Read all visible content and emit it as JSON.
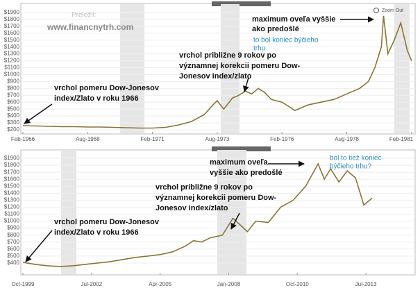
{
  "header": {
    "translator_label": "Preložil:",
    "website": "www.financnytrh.com",
    "zoom_label": "Zoom Out"
  },
  "chart_data": [
    {
      "type": "line",
      "color": "#8a7533",
      "grid": true,
      "xlim": [
        "1966-02",
        "1981-03"
      ],
      "ylim": [
        170,
        1980
      ],
      "xticks": [
        {
          "value": "1966-02",
          "label": "Feb-1966"
        },
        {
          "value": "1968-08",
          "label": "Aug-1968"
        },
        {
          "value": "1971-02",
          "label": "Feb-1971"
        },
        {
          "value": "1973-08",
          "label": "Aug-1973"
        },
        {
          "value": "1976-02",
          "label": "Feb-1976"
        },
        {
          "value": "1978-08",
          "label": "Aug-1978"
        },
        {
          "value": "1981-02",
          "label": "Feb-1981"
        }
      ],
      "yticks": [
        {
          "value": 200,
          "label": "$200"
        },
        {
          "value": 300,
          "label": "$300"
        },
        {
          "value": 400,
          "label": "$400"
        },
        {
          "value": 500,
          "label": "$500"
        },
        {
          "value": 600,
          "label": "$600"
        },
        {
          "value": 700,
          "label": "$700"
        },
        {
          "value": 800,
          "label": "$800"
        },
        {
          "value": 900,
          "label": "$900"
        },
        {
          "value": 1000,
          "label": "$1000"
        },
        {
          "value": 1100,
          "label": "$1100"
        },
        {
          "value": 1200,
          "label": "$1200"
        },
        {
          "value": 1300,
          "label": "$1300"
        },
        {
          "value": 1400,
          "label": "$1400"
        },
        {
          "value": 1500,
          "label": "$1500"
        },
        {
          "value": 1600,
          "label": "$1600"
        },
        {
          "value": 1700,
          "label": "$1700"
        },
        {
          "value": 1800,
          "label": "$1800"
        },
        {
          "value": 1900,
          "label": "$1900"
        }
      ],
      "x": [
        "1966-02",
        "1966-08",
        "1967-02",
        "1967-08",
        "1968-02",
        "1968-08",
        "1969-02",
        "1969-08",
        "1970-02",
        "1970-08",
        "1971-02",
        "1971-08",
        "1972-02",
        "1972-08",
        "1973-02",
        "1973-06",
        "1973-08",
        "1973-11",
        "1974-03",
        "1974-06",
        "1974-09",
        "1974-12",
        "1975-03",
        "1975-06",
        "1975-09",
        "1976-02",
        "1976-08",
        "1977-02",
        "1977-08",
        "1978-02",
        "1978-08",
        "1979-02",
        "1979-06",
        "1979-09",
        "1979-12",
        "1980-01",
        "1980-03",
        "1980-06",
        "1980-09",
        "1980-12",
        "1981-02"
      ],
      "values": [
        260,
        255,
        250,
        245,
        245,
        240,
        240,
        235,
        230,
        225,
        225,
        235,
        270,
        320,
        420,
        560,
        620,
        500,
        660,
        700,
        760,
        720,
        800,
        740,
        640,
        600,
        480,
        560,
        600,
        640,
        720,
        800,
        900,
        1100,
        1400,
        1850,
        1300,
        1500,
        1750,
        1350,
        1200
      ],
      "annotations": [
        {
          "lines": [
            "vrchol pomeru Dow-Jonesov",
            "index/Zlato v roku 1966"
          ]
        },
        {
          "lines": [
            "vrchol približne 9 rokov po",
            "významnej korekcii pomeru Dow-",
            "Jonesov index/zlato"
          ]
        },
        {
          "lines": [
            "maximum oveľa vyššie",
            "ako predošlé"
          ]
        },
        {
          "lines": [
            "to bol koniec býčieho",
            "trhu"
          ]
        }
      ]
    },
    {
      "type": "line",
      "color": "#8a7533",
      "grid": true,
      "xlim": [
        "1999-10",
        "2015-06"
      ],
      "ylim": [
        260,
        1980
      ],
      "xticks": [
        {
          "value": "1999-10",
          "label": "Oct-1999"
        },
        {
          "value": "2002-07",
          "label": "Jul-2002"
        },
        {
          "value": "2005-04",
          "label": "Apr-2005"
        },
        {
          "value": "2008-01",
          "label": "Jan-2008"
        },
        {
          "value": "2010-10",
          "label": "Oct-2010"
        },
        {
          "value": "2013-07",
          "label": "Jul-2013"
        }
      ],
      "yticks": [
        {
          "value": 400,
          "label": "$400"
        },
        {
          "value": 500,
          "label": "$500"
        },
        {
          "value": 600,
          "label": "$600"
        },
        {
          "value": 700,
          "label": "$700"
        },
        {
          "value": 800,
          "label": "$800"
        },
        {
          "value": 900,
          "label": "$900"
        },
        {
          "value": 1000,
          "label": "$1000"
        },
        {
          "value": 1100,
          "label": "$1100"
        },
        {
          "value": 1200,
          "label": "$1200"
        },
        {
          "value": 1300,
          "label": "$1300"
        },
        {
          "value": 1400,
          "label": "$1400"
        },
        {
          "value": 1500,
          "label": "$1500"
        },
        {
          "value": 1600,
          "label": "$1600"
        },
        {
          "value": 1700,
          "label": "$1700"
        },
        {
          "value": 1800,
          "label": "$1800"
        },
        {
          "value": 1900,
          "label": "$1900"
        }
      ],
      "x": [
        "1999-10",
        "2000-04",
        "2000-10",
        "2001-04",
        "2001-10",
        "2002-04",
        "2002-10",
        "2003-04",
        "2003-10",
        "2004-04",
        "2004-10",
        "2005-04",
        "2005-10",
        "2006-04",
        "2006-08",
        "2006-12",
        "2007-04",
        "2007-10",
        "2008-03",
        "2008-06",
        "2008-10",
        "2009-02",
        "2009-08",
        "2010-02",
        "2010-08",
        "2011-02",
        "2011-08",
        "2011-11",
        "2012-02",
        "2012-06",
        "2012-10",
        "2013-02",
        "2013-06",
        "2013-10"
      ],
      "values": [
        410,
        380,
        360,
        350,
        360,
        380,
        400,
        420,
        450,
        480,
        500,
        520,
        560,
        640,
        720,
        700,
        760,
        800,
        1040,
        960,
        850,
        1000,
        980,
        1200,
        1300,
        1500,
        1820,
        1600,
        1750,
        1560,
        1720,
        1620,
        1230,
        1330
      ],
      "annotations": [
        {
          "lines": [
            "vrchol pomeru Dow-Jonesov",
            "index/Zlato v roku 1966"
          ]
        },
        {
          "lines": [
            "vrchol približne 9 rokov po",
            "významnej korekcii pomeru Dow-",
            "Jonesov index/zlato"
          ]
        },
        {
          "lines": [
            "maximum oveľa",
            "vyššie ako predošlé"
          ]
        },
        {
          "lines": [
            "bol to tiež koniec",
            "býčieho trhu?"
          ]
        }
      ]
    }
  ]
}
